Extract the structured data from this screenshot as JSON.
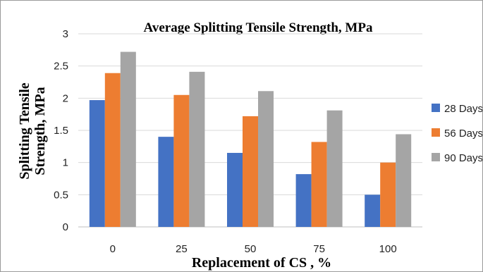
{
  "chart_data": {
    "type": "bar",
    "title": "Average Splitting Tensile Strength, MPa",
    "xlabel": "Replacement of  CS , %",
    "ylabel_lines": [
      "Splitting Tensile",
      "Strength, MPa"
    ],
    "categories": [
      "0",
      "25",
      "50",
      "75",
      "100"
    ],
    "ylim": [
      0,
      3
    ],
    "yticks": [
      "0",
      "0.5",
      "1",
      "1.5",
      "2",
      "2.5",
      "3"
    ],
    "grid": true,
    "legend_position": "right",
    "series": [
      {
        "name": "28 Days",
        "color": "#4472C4",
        "values": [
          1.97,
          1.4,
          1.15,
          0.82,
          0.5
        ]
      },
      {
        "name": "56 Days",
        "color": "#ED7D31",
        "values": [
          2.39,
          2.05,
          1.72,
          1.32,
          1.0
        ]
      },
      {
        "name": "90 Days",
        "color": "#A5A5A5",
        "values": [
          2.72,
          2.41,
          2.11,
          1.81,
          1.44
        ]
      }
    ]
  }
}
